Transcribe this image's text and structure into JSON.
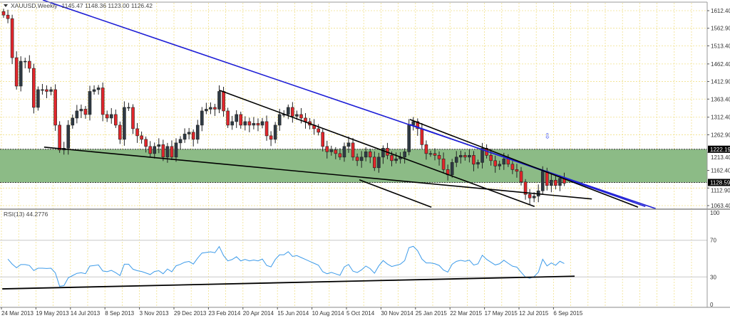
{
  "chart_data": {
    "type": "candlestick",
    "title": "XAUUSD,Weekly",
    "ohlc_label": "1145.47 1148.36 1123.00 1126.42",
    "price_ticks": [
      "1612.40",
      "1562.90",
      "1513.40",
      "1462.40",
      "1412.90",
      "1363.40",
      "1312.40",
      "1262.90",
      "1213.40",
      "1162.40",
      "1112.90",
      "1063.40"
    ],
    "price_tick_values": [
      1612.4,
      1562.9,
      1513.4,
      1462.4,
      1412.9,
      1363.4,
      1312.4,
      1262.9,
      1213.4,
      1162.4,
      1112.9,
      1063.4
    ],
    "date_ticks": [
      "24 Mar 2013",
      "19 May 2013",
      "14 Jul 2013",
      "8 Sep 2013",
      "3 Nov 2013",
      "29 Dec 2013",
      "23 Feb 2014",
      "20 Apr 2014",
      "15 Jun 2014",
      "10 Aug 2014",
      "5 Oct 2014",
      "30 Nov 2014",
      "25 Jan 2015",
      "22 Mar 2015",
      "17 May 2015",
      "12 Jul 2015",
      "6 Sep 2015"
    ],
    "weekly_closes": [
      1600,
      1590,
      1480,
      1400,
      1470,
      1470,
      1450,
      1340,
      1390,
      1390,
      1385,
      1390,
      1290,
      1220,
      1225,
      1290,
      1310,
      1330,
      1335,
      1320,
      1385,
      1390,
      1395,
      1320,
      1310,
      1320,
      1290,
      1250,
      1340,
      1340,
      1280,
      1260,
      1250,
      1230,
      1210,
      1230,
      1235,
      1200,
      1230,
      1200,
      1240,
      1250,
      1265,
      1270,
      1250,
      1290,
      1330,
      1335,
      1340,
      1335,
      1385,
      1330,
      1290,
      1300,
      1320,
      1290,
      1300,
      1290,
      1295,
      1290,
      1300,
      1260,
      1250,
      1290,
      1320,
      1320,
      1340,
      1315,
      1320,
      1310,
      1300,
      1290,
      1280,
      1270,
      1230,
      1215,
      1220,
      1210,
      1200,
      1230,
      1240,
      1200,
      1190,
      1200,
      1215,
      1200,
      1170,
      1200,
      1225,
      1205,
      1190,
      1195,
      1200,
      1215,
      1290,
      1300,
      1280,
      1235,
      1210,
      1210,
      1205,
      1195,
      1165,
      1150,
      1185,
      1200,
      1205,
      1200,
      1205,
      1180,
      1185,
      1225,
      1205,
      1190,
      1175,
      1180,
      1195,
      1180,
      1165,
      1160,
      1130,
      1095,
      1085,
      1090,
      1105,
      1160,
      1120,
      1135,
      1120,
      1140,
      1126.42
    ],
    "first_open": 1610,
    "support_zone": {
      "upper": 1222.19,
      "lower": 1128.59,
      "upper_label": "1222.19",
      "lower_label": "1128.59",
      "color": "#8cbb86"
    },
    "trendlines": [
      {
        "color": "#1f1fd6",
        "from": [
          9.1,
          1642.5
        ],
        "to": [
          151.2,
          1055
        ]
      },
      {
        "color": "#1f1fd6",
        "from": [
          94.2,
          1292
        ],
        "to": [
          148.8,
          1061
        ]
      },
      {
        "color": "#000000",
        "from": [
          9.4,
          1228
        ],
        "to": [
          136.4,
          1082
        ]
      },
      {
        "color": "#000000",
        "from": [
          50.1,
          1388
        ],
        "to": [
          123.1,
          1061
        ]
      },
      {
        "color": "#000000",
        "from": [
          82.5,
          1136
        ],
        "to": [
          99.2,
          1059
        ]
      },
      {
        "color": "#000000",
        "from": [
          94.2,
          1306
        ],
        "to": [
          147.1,
          1059
        ]
      }
    ],
    "arrow_marker": {
      "week": 126,
      "price": 1252,
      "glyph": "⇩",
      "color": "#4a5cf0"
    },
    "bull_color": "#2f3a44",
    "bear_color": "#e3262b",
    "grid": true,
    "rsi": {
      "label": "RSI(13) 44.2776",
      "period": 13,
      "color": "#3d9be9",
      "levels": [
        "100",
        "70",
        "30",
        "0"
      ],
      "level_values": [
        100,
        70,
        30,
        0
      ],
      "trendline": {
        "from": [
          -0.3,
          17
        ],
        "to": [
          132.4,
          30.8
        ]
      }
    }
  }
}
